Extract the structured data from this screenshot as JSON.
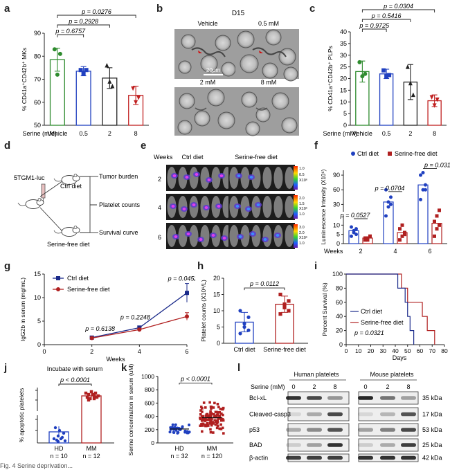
{
  "panels": {
    "a": {
      "label": "a",
      "ylabel": "% CD41a⁺CD42b⁺ MKs",
      "ylim": [
        50,
        90
      ],
      "yticks": [
        "50",
        "60",
        "70",
        "80",
        "90"
      ],
      "xtitle": "Serine (mM)",
      "categories": [
        "Vehicle",
        "0.5",
        "2",
        "8"
      ],
      "colors": [
        "#2e8b2e",
        "#2040c0",
        "#222222",
        "#c02020"
      ],
      "markers": [
        "circle",
        "square",
        "triangle",
        "invtriangle"
      ],
      "means": [
        78.5,
        73.5,
        70.5,
        63
      ],
      "errors": [
        5,
        2,
        4.5,
        4
      ],
      "points": [
        [
          83,
          72,
          81
        ],
        [
          74,
          72.5,
          74
        ],
        [
          76,
          69,
          67
        ],
        [
          66,
          60,
          62
        ]
      ],
      "pvalues": [
        "p = 0.0276",
        "p = 0.2928",
        "p = 0.6757"
      ],
      "pvalue_pairs": [
        [
          0,
          3
        ],
        [
          0,
          2
        ],
        [
          0,
          1
        ]
      ]
    },
    "b": {
      "label": "b",
      "day": "D15",
      "conditions": [
        "Vehicle",
        "0.5 mM",
        "2 mM",
        "8 mM"
      ],
      "scalebar": "20μm"
    },
    "c": {
      "label": "c",
      "ylabel": "% CD41a⁺CD42b⁺ PLPs",
      "ylim": [
        0,
        40
      ],
      "yticks": [
        "0",
        "5",
        "10",
        "15",
        "20",
        "25",
        "30",
        "35",
        "40"
      ],
      "xtitle": "Serine (mM)",
      "categories": [
        "Vehicle",
        "0.5",
        "2",
        "8"
      ],
      "colors": [
        "#2e8b2e",
        "#2040c0",
        "#222222",
        "#c02020"
      ],
      "markers": [
        "circle",
        "square",
        "triangle",
        "invtriangle"
      ],
      "means": [
        23,
        22,
        18.5,
        10.5
      ],
      "errors": [
        4.5,
        2,
        7.5,
        2.5
      ],
      "points": [
        [
          27,
          21,
          22
        ],
        [
          23.5,
          21,
          21.5
        ],
        [
          25,
          18,
          13
        ],
        [
          12,
          8.5,
          11
        ]
      ],
      "pvalues": [
        "p = 0.0304",
        "p = 0.5416",
        "p = 0.9725"
      ],
      "pvalue_pairs": [
        [
          0,
          3
        ],
        [
          0,
          2
        ],
        [
          0,
          1
        ]
      ]
    },
    "d": {
      "label": "d",
      "cell_line": "5TGM1-luc",
      "diet_top": "Ctrl diet",
      "diet_bottom": "Serine-free diet",
      "outcomes": [
        "Tumor burden",
        "Platelet counts",
        "Survival curve"
      ]
    },
    "e": {
      "label": "e",
      "weeks_label": "Weeks",
      "groups": [
        "Ctrl diet",
        "Serine-free diet"
      ],
      "weeks": [
        "2",
        "4",
        "6"
      ],
      "colorbar_top": [
        "1.0",
        "0.5",
        "X10⁶"
      ],
      "colorbar_mid": [
        "2.0",
        "1.5",
        "X10⁶",
        "1.0"
      ],
      "colorbar_bot": [
        "3.0",
        "2.0",
        "X10⁶",
        "1.0"
      ]
    },
    "f": {
      "label": "f",
      "ylabel": "Luminescence Intensity (X10⁶)",
      "yticks_low": [
        "0",
        "5",
        "10"
      ],
      "yticks_high": [
        "30",
        "60",
        "90"
      ],
      "xtitle": "Weeks",
      "categories": [
        "2",
        "4",
        "6"
      ],
      "legend": [
        "Ctrl diet",
        "Serine-free diet"
      ],
      "colors": [
        "#2040c0",
        "#b02020"
      ],
      "means_ctrl": [
        7,
        35,
        70
      ],
      "means_sf": [
        3,
        6,
        11
      ],
      "points_ctrl": [
        [
          4,
          6,
          8,
          9,
          7,
          5
        ],
        [
          15,
          25,
          45,
          60,
          35,
          30
        ],
        [
          40,
          60,
          70,
          90,
          95,
          60
        ]
      ],
      "points_sf": [
        [
          2,
          3,
          4,
          3,
          2,
          4
        ],
        [
          2,
          4,
          6,
          8,
          10,
          5
        ],
        [
          4,
          8,
          10,
          12,
          15,
          18
        ]
      ],
      "pvalues": [
        "p = 0.0527",
        "p = 0.0704",
        "p = 0.0310"
      ]
    },
    "g": {
      "label": "g",
      "ylabel": "IgG2b in serum (mg/mL)",
      "ylim": [
        0,
        15
      ],
      "yticks": [
        "0",
        "5",
        "10",
        "15"
      ],
      "xlim": [
        0,
        6
      ],
      "xticks": [
        "0",
        "2",
        "4",
        "6"
      ],
      "xlabel": "Weeks",
      "legend": [
        "Ctrl diet",
        "Serine-free diet"
      ],
      "colors": [
        "#1a2a8a",
        "#b02020"
      ],
      "x": [
        2,
        4,
        6
      ],
      "ctrl": [
        1.5,
        3.6,
        11
      ],
      "ctrl_err": [
        0.3,
        0.4,
        2
      ],
      "sf": [
        1.4,
        3.2,
        6
      ],
      "sf_err": [
        0.2,
        0.3,
        0.8
      ],
      "pvalues": [
        "p = 0.6138",
        "p = 0.2248",
        "p = 0.0452"
      ]
    },
    "h": {
      "label": "h",
      "ylabel": "Platelet counts (X10⁹/L)",
      "ylim": [
        0,
        20
      ],
      "yticks": [
        "0",
        "5",
        "10",
        "15",
        "20"
      ],
      "categories": [
        "Ctrl diet",
        "Serine-free diet"
      ],
      "colors": [
        "#2040c0",
        "#b02020"
      ],
      "means": [
        6.5,
        12
      ],
      "errors": [
        3,
        2.5
      ],
      "points": [
        [
          3,
          6,
          8,
          10,
          5,
          4
        ],
        [
          9,
          11,
          13,
          15,
          12,
          10
        ]
      ],
      "pvalue": "p = 0.0112"
    },
    "i": {
      "label": "i",
      "ylabel": "Percent Survival (%)",
      "ylim": [
        0,
        100
      ],
      "yticks": [
        "0",
        "20",
        "40",
        "60",
        "80",
        "100"
      ],
      "xlim": [
        0,
        80
      ],
      "xticks": [
        "0",
        "10",
        "20",
        "30",
        "40",
        "50",
        "60",
        "70",
        "80"
      ],
      "xlabel": "Days",
      "legend": [
        "Ctrl diet",
        "Serine-free diet"
      ],
      "colors": [
        "#1a2a8a",
        "#b02020"
      ],
      "ctrl_steps": [
        [
          0,
          100
        ],
        [
          42,
          100
        ],
        [
          42,
          80
        ],
        [
          48,
          80
        ],
        [
          48,
          60
        ],
        [
          50,
          60
        ],
        [
          50,
          40
        ],
        [
          52,
          40
        ],
        [
          52,
          20
        ],
        [
          55,
          20
        ],
        [
          55,
          0
        ]
      ],
      "sf_steps": [
        [
          0,
          100
        ],
        [
          45,
          100
        ],
        [
          45,
          80
        ],
        [
          50,
          80
        ],
        [
          50,
          60
        ],
        [
          62,
          60
        ],
        [
          62,
          40
        ],
        [
          66,
          40
        ],
        [
          66,
          20
        ],
        [
          72,
          20
        ],
        [
          72,
          0
        ]
      ],
      "pvalue": "p = 0.0321"
    },
    "j": {
      "label": "j",
      "title": "Incubate with serum",
      "ylabel": "% apoptotic platelets",
      "categories": [
        "HD",
        "MM"
      ],
      "counts": [
        "n = 10",
        "n = 12"
      ],
      "colors": [
        "#2040c0",
        "#b02020"
      ],
      "pvalue": "p < 0.0001"
    },
    "k": {
      "label": "k",
      "ylabel": "Serine concentration in serum (uM)",
      "ylim": [
        0,
        1000
      ],
      "yticks": [
        "0",
        "200",
        "400",
        "600",
        "800",
        "1000"
      ],
      "categories": [
        "HD",
        "MM"
      ],
      "counts": [
        "n = 32",
        "n = 120"
      ],
      "colors": [
        "#2040c0",
        "#b02020"
      ],
      "means": [
        210,
        380
      ],
      "pvalue": "p < 0.0001"
    },
    "l": {
      "label": "l",
      "serine_label": "Serine (mM)",
      "groups": [
        "Human platelets",
        "Mouse platelets"
      ],
      "doses": [
        "0",
        "2",
        "8"
      ],
      "proteins": [
        "Bcl-xL",
        "Cleaved-casp3",
        "p53",
        "BAD",
        "β-actin"
      ],
      "sizes": [
        "35 kDa",
        "17 kDa",
        "53 kDa",
        "25 kDa",
        "42 kDa"
      ]
    }
  },
  "caption": "Fig. 4 Serine deprivation..."
}
